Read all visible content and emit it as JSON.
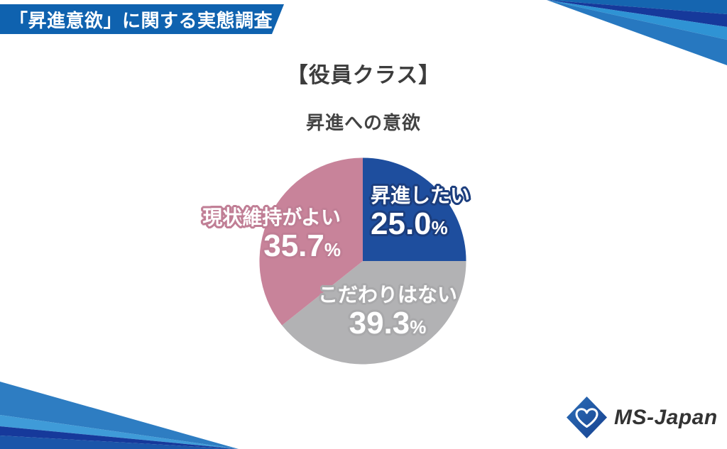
{
  "banner": {
    "title": "「昇進意欲」に関する実態調査",
    "bg_color": "#0f62af"
  },
  "header": {
    "title": "【役員クラス】",
    "subtitle": "昇進への意欲"
  },
  "chart_data": {
    "type": "pie",
    "title": "昇進への意欲",
    "labels": [
      "昇進したい",
      "こだわりはない",
      "現状維持がよい"
    ],
    "values": [
      25.0,
      39.3,
      35.7
    ],
    "value_labels": [
      "25.0",
      "39.3",
      "35.7"
    ],
    "unit": "%",
    "colors": [
      "#1e4e9e",
      "#b2b2b4",
      "#c8839a"
    ],
    "start_angle_deg": 0,
    "direction": "clockwise",
    "legend": "none",
    "label_style": "white text with slice-colored outline, placed on/near slices"
  },
  "decor": {
    "top_right_bands": [
      "#1565b0",
      "#16399b",
      "#2f93d4",
      "#2778c0"
    ],
    "bottom_left_bands": [
      "#2e7dc2",
      "#3f9bd8",
      "#16399b",
      "#1b55a9"
    ]
  },
  "logo": {
    "text": "MS-Japan",
    "icon": "diamond-heart-icon",
    "icon_color": "#2363ae",
    "text_color": "#333333"
  }
}
